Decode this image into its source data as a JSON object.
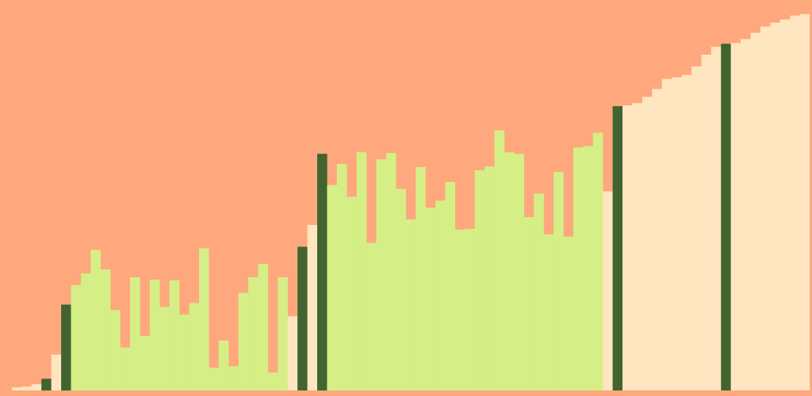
{
  "chart_data": {
    "type": "bar",
    "title": "",
    "xlabel": "",
    "ylabel": "",
    "ylim": [
      0,
      500
    ],
    "grid": false,
    "legend": "none",
    "colors": {
      "background": "#ffa77d",
      "cream": "#ffe5c0",
      "light_green": "#d5ef86",
      "dark_green": "#416430"
    },
    "bars": [
      {
        "value": 4,
        "color": "cream"
      },
      {
        "value": 5,
        "color": "cream"
      },
      {
        "value": 8,
        "color": "cream"
      },
      {
        "value": 15,
        "color": "dark_green"
      },
      {
        "value": 46,
        "color": "cream"
      },
      {
        "value": 110,
        "color": "dark_green"
      },
      {
        "value": 135,
        "color": "light_green"
      },
      {
        "value": 150,
        "color": "light_green"
      },
      {
        "value": 180,
        "color": "light_green"
      },
      {
        "value": 155,
        "color": "light_green"
      },
      {
        "value": 103,
        "color": "light_green"
      },
      {
        "value": 55,
        "color": "light_green"
      },
      {
        "value": 145,
        "color": "light_green"
      },
      {
        "value": 70,
        "color": "light_green"
      },
      {
        "value": 142,
        "color": "light_green"
      },
      {
        "value": 107,
        "color": "light_green"
      },
      {
        "value": 141,
        "color": "light_green"
      },
      {
        "value": 97,
        "color": "light_green"
      },
      {
        "value": 112,
        "color": "light_green"
      },
      {
        "value": 182,
        "color": "light_green"
      },
      {
        "value": 29,
        "color": "light_green"
      },
      {
        "value": 64,
        "color": "light_green"
      },
      {
        "value": 31,
        "color": "light_green"
      },
      {
        "value": 125,
        "color": "light_green"
      },
      {
        "value": 145,
        "color": "light_green"
      },
      {
        "value": 162,
        "color": "light_green"
      },
      {
        "value": 23,
        "color": "light_green"
      },
      {
        "value": 145,
        "color": "light_green"
      },
      {
        "value": 95,
        "color": "cream"
      },
      {
        "value": 184,
        "color": "dark_green"
      },
      {
        "value": 212,
        "color": "cream"
      },
      {
        "value": 303,
        "color": "dark_green"
      },
      {
        "value": 263,
        "color": "light_green"
      },
      {
        "value": 290,
        "color": "light_green"
      },
      {
        "value": 248,
        "color": "light_green"
      },
      {
        "value": 305,
        "color": "light_green"
      },
      {
        "value": 189,
        "color": "light_green"
      },
      {
        "value": 296,
        "color": "light_green"
      },
      {
        "value": 304,
        "color": "light_green"
      },
      {
        "value": 258,
        "color": "light_green"
      },
      {
        "value": 219,
        "color": "light_green"
      },
      {
        "value": 286,
        "color": "light_green"
      },
      {
        "value": 234,
        "color": "light_green"
      },
      {
        "value": 243,
        "color": "light_green"
      },
      {
        "value": 267,
        "color": "light_green"
      },
      {
        "value": 206,
        "color": "light_green"
      },
      {
        "value": 207,
        "color": "light_green"
      },
      {
        "value": 282,
        "color": "light_green"
      },
      {
        "value": 287,
        "color": "light_green"
      },
      {
        "value": 333,
        "color": "light_green"
      },
      {
        "value": 305,
        "color": "light_green"
      },
      {
        "value": 303,
        "color": "light_green"
      },
      {
        "value": 222,
        "color": "light_green"
      },
      {
        "value": 252,
        "color": "light_green"
      },
      {
        "value": 200,
        "color": "light_green"
      },
      {
        "value": 280,
        "color": "light_green"
      },
      {
        "value": 197,
        "color": "light_green"
      },
      {
        "value": 311,
        "color": "light_green"
      },
      {
        "value": 313,
        "color": "light_green"
      },
      {
        "value": 330,
        "color": "light_green"
      },
      {
        "value": 255,
        "color": "cream"
      },
      {
        "value": 364,
        "color": "dark_green"
      },
      {
        "value": 365,
        "color": "cream"
      },
      {
        "value": 368,
        "color": "cream"
      },
      {
        "value": 376,
        "color": "cream"
      },
      {
        "value": 386,
        "color": "cream"
      },
      {
        "value": 399,
        "color": "cream"
      },
      {
        "value": 401,
        "color": "cream"
      },
      {
        "value": 404,
        "color": "cream"
      },
      {
        "value": 415,
        "color": "cream"
      },
      {
        "value": 430,
        "color": "cream"
      },
      {
        "value": 440,
        "color": "cream"
      },
      {
        "value": 444,
        "color": "dark_green"
      },
      {
        "value": 445,
        "color": "cream"
      },
      {
        "value": 450,
        "color": "cream"
      },
      {
        "value": 458,
        "color": "cream"
      },
      {
        "value": 466,
        "color": "cream"
      },
      {
        "value": 471,
        "color": "cream"
      },
      {
        "value": 475,
        "color": "cream"
      },
      {
        "value": 480,
        "color": "cream"
      },
      {
        "value": 482,
        "color": "cream"
      }
    ]
  }
}
